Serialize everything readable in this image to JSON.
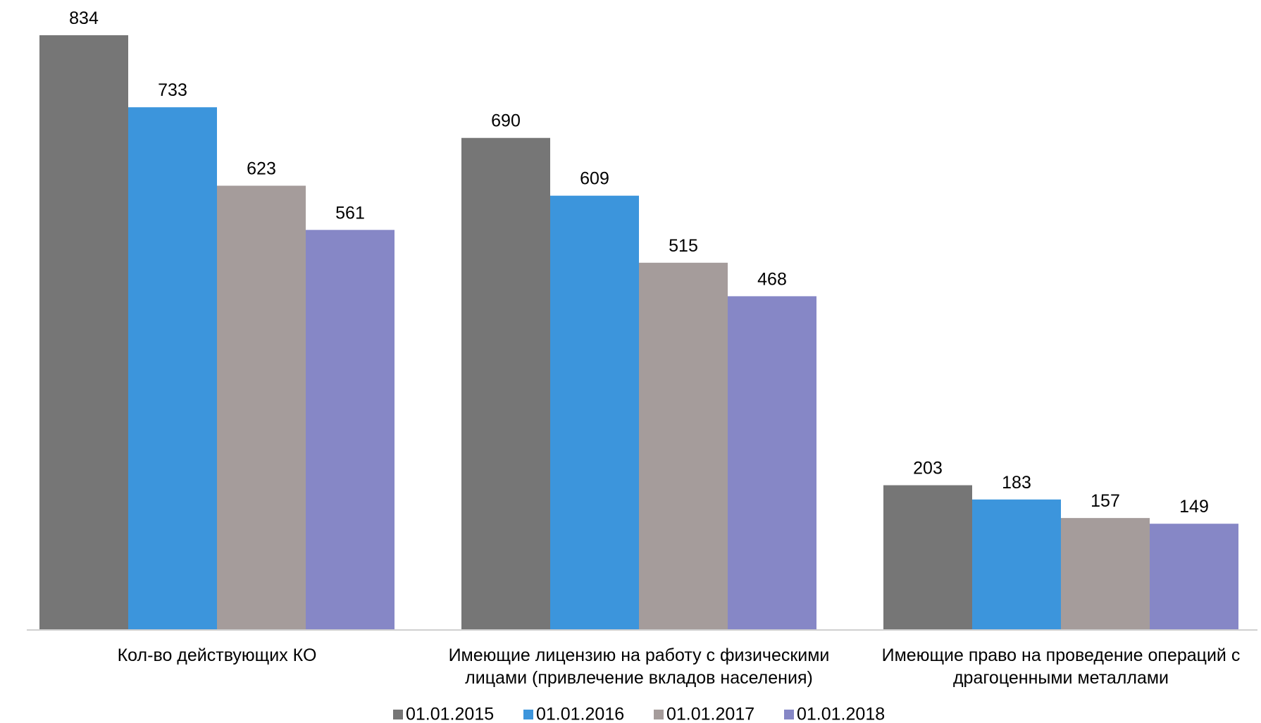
{
  "chart_data": {
    "type": "bar",
    "categories": [
      [
        "Кол-во действующих КО"
      ],
      [
        "Имеющие лицензию на работу с физическими",
        "лицами (привлечение вкладов населения)"
      ],
      [
        "Имеющие право на проведение операций с",
        "драгоценными металлами"
      ]
    ],
    "series": [
      {
        "name": "01.01.2015",
        "color": "#767676",
        "values": [
          834,
          690,
          203
        ]
      },
      {
        "name": "01.01.2016",
        "color": "#3c95dc",
        "values": [
          733,
          609,
          183
        ]
      },
      {
        "name": "01.01.2017",
        "color": "#a59c9b",
        "values": [
          623,
          515,
          157
        ]
      },
      {
        "name": "01.01.2018",
        "color": "#8687c6",
        "values": [
          561,
          468,
          149
        ]
      }
    ],
    "ylim": [
      0,
      834
    ],
    "legend_position": "bottom",
    "grid": false,
    "title": "",
    "xlabel": "",
    "ylabel": ""
  }
}
